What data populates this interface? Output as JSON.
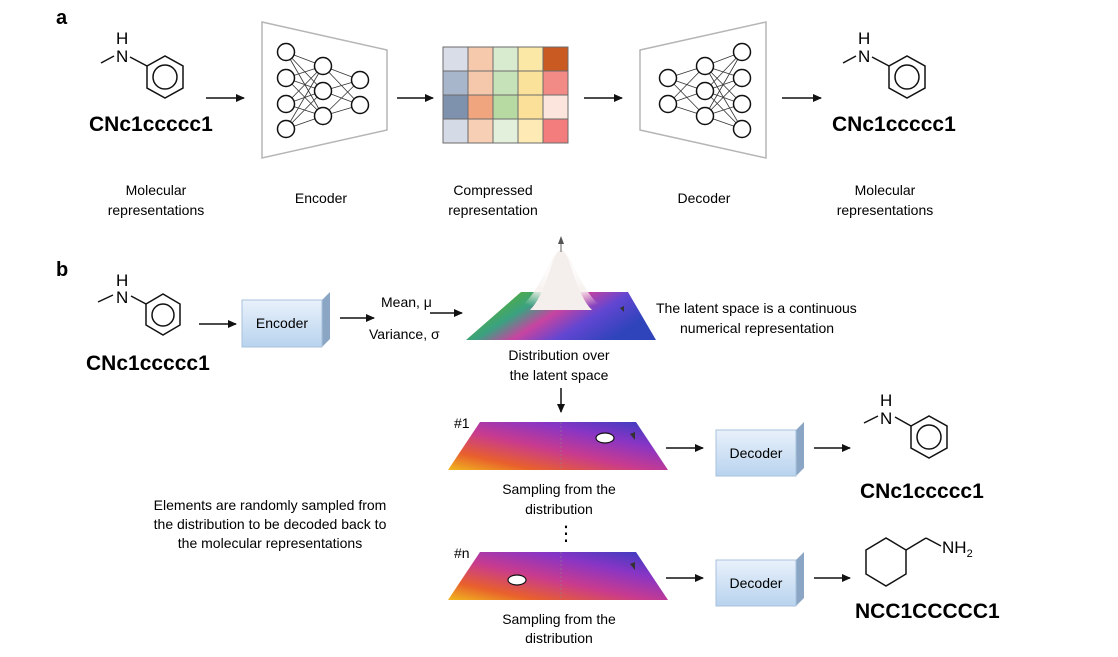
{
  "panel_a": {
    "label": "a",
    "input_smiles": "CNc1ccccc1",
    "output_smiles": "CNc1ccccc1",
    "input_caption": [
      "Molecular",
      "representations"
    ],
    "encoder_caption": "Encoder",
    "compressed_caption": [
      "Compressed",
      "representation"
    ],
    "decoder_caption": "Decoder",
    "output_caption": [
      "Molecular",
      "representations"
    ],
    "atom_label": "H",
    "atom_label_n": "N",
    "grid_colors": [
      [
        "#d9dde8",
        "#f6c9ad",
        "#d8ebcf",
        "#fbe7a6",
        "#c95a22"
      ],
      [
        "#a8b6cc",
        "#f5c8ab",
        "#c6e2b8",
        "#fbe29b",
        "#f28b86"
      ],
      [
        "#7e91ad",
        "#f1a57e",
        "#b7d9a2",
        "#fbe09a",
        "#fbe5dc"
      ],
      [
        "#d4dae6",
        "#f6cfb5",
        "#e3f1dc",
        "#fdeab4",
        "#f37d7c"
      ]
    ]
  },
  "panel_b": {
    "label": "b",
    "input_smiles": "CNc1ccccc1",
    "encoder_label": "Encoder",
    "mean_label": "Mean, μ",
    "variance_label": "Variance, σ",
    "latent_note": [
      "The latent space is a continuous",
      "numerical representation"
    ],
    "distribution_caption": [
      "Distribution over",
      "the latent space"
    ],
    "sample1_tag": "#1",
    "samplen_tag": "#n",
    "sampling_caption": [
      "Sampling from the",
      "distribution"
    ],
    "decoder_label": "Decoder",
    "output1_smiles": "CNc1ccccc1",
    "output2_smiles": "NCC1CCCCC1",
    "elements_note": [
      "Elements are randomly sampled from",
      "the distribution to be decoded back to",
      "the molecular representations"
    ],
    "ellipsis": "⋮",
    "nh2_label": "NH",
    "nh2_sub": "2"
  }
}
